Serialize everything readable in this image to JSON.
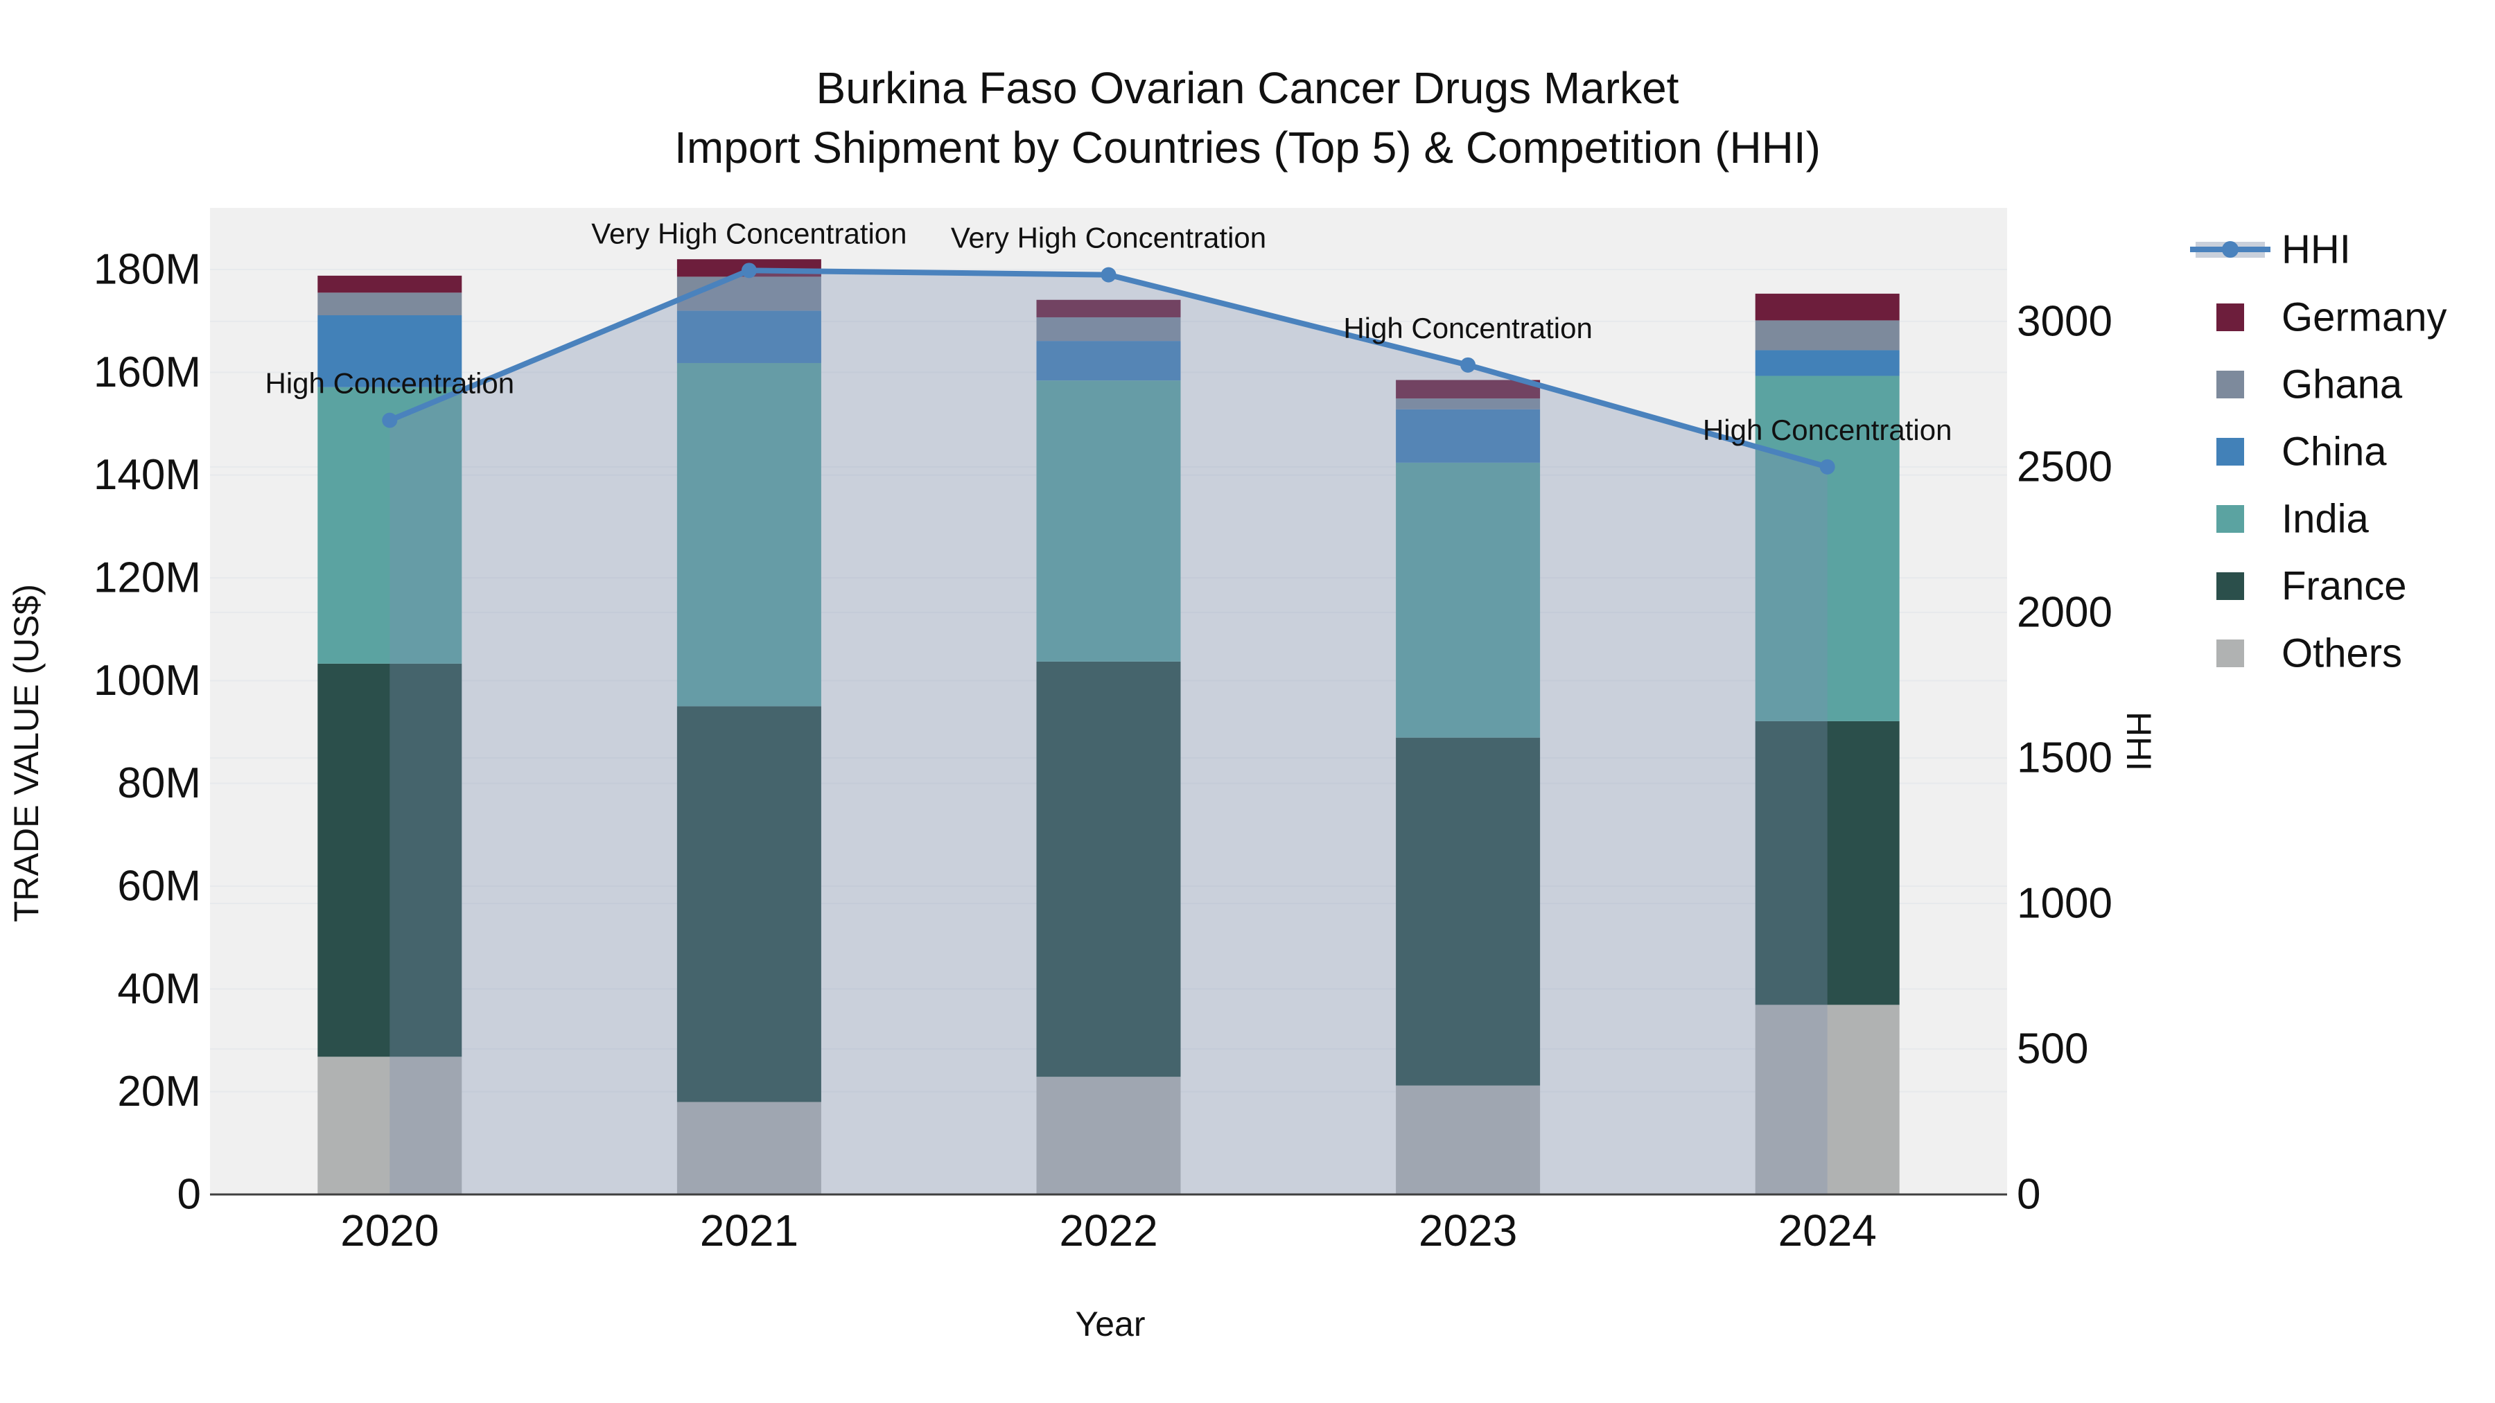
{
  "title": {
    "line1": "Burkina Faso Ovarian Cancer Drugs Market",
    "line2": "Import Shipment by Countries (Top 5) & Competition (HHI)"
  },
  "axes": {
    "x": {
      "title": "Year",
      "ticks": [
        "2020",
        "2021",
        "2022",
        "2023",
        "2024"
      ]
    },
    "y_left": {
      "title": "TRADE VALUE (US$)",
      "tick_labels": [
        "0",
        "20M",
        "40M",
        "60M",
        "80M",
        "100M",
        "120M",
        "140M",
        "160M",
        "180M"
      ],
      "tick_values": [
        0,
        20,
        40,
        60,
        80,
        100,
        120,
        140,
        160,
        180
      ]
    },
    "y_right": {
      "title": "HHI",
      "tick_labels": [
        "0",
        "500",
        "1000",
        "1500",
        "2000",
        "2500",
        "3000"
      ],
      "tick_values": [
        0,
        500,
        1000,
        1500,
        2000,
        2500,
        3000
      ]
    }
  },
  "chart_data": {
    "type": "combo: stacked-bar + line",
    "x": [
      "2020",
      "2021",
      "2022",
      "2023",
      "2024"
    ],
    "bar_unit": "million US$ (trade value, left axis)",
    "bar_series": [
      {
        "name": "Others",
        "color": "#b0b2b2",
        "values": [
          26.8,
          18.0,
          22.9,
          21.2,
          36.9
        ]
      },
      {
        "name": "France",
        "color": "#2b4f4b",
        "values": [
          76.5,
          77.0,
          80.8,
          67.7,
          55.2
        ]
      },
      {
        "name": "India",
        "color": "#5ba3a1",
        "values": [
          53.8,
          66.8,
          54.7,
          53.5,
          67.2
        ]
      },
      {
        "name": "China",
        "color": "#4281b8",
        "values": [
          14.0,
          10.2,
          7.7,
          10.4,
          5.0
        ]
      },
      {
        "name": "Ghana",
        "color": "#7d8a9c",
        "values": [
          4.4,
          6.6,
          4.6,
          2.1,
          5.8
        ]
      },
      {
        "name": "Germany",
        "color": "#6d1e3c",
        "values": [
          3.3,
          3.4,
          3.4,
          3.6,
          5.2
        ]
      }
    ],
    "line_series": {
      "name": "HHI",
      "color": "#4a82bd",
      "area_fill": "rgba(123,144,177,0.33)",
      "values": [
        2660,
        3175,
        3160,
        2850,
        2500
      ]
    },
    "annotations": [
      {
        "x": "2020",
        "text": "High Concentration"
      },
      {
        "x": "2021",
        "text": "Very High Concentration"
      },
      {
        "x": "2022",
        "text": "Very High Concentration"
      },
      {
        "x": "2023",
        "text": "High Concentration"
      },
      {
        "x": "2024",
        "text": "High Concentration"
      }
    ],
    "y_left_axis_max_label": "180M",
    "y_right_axis_max_label": "3000",
    "grid": true,
    "legend_position": "right",
    "legend_area_patch_color": "#c9d0db"
  }
}
